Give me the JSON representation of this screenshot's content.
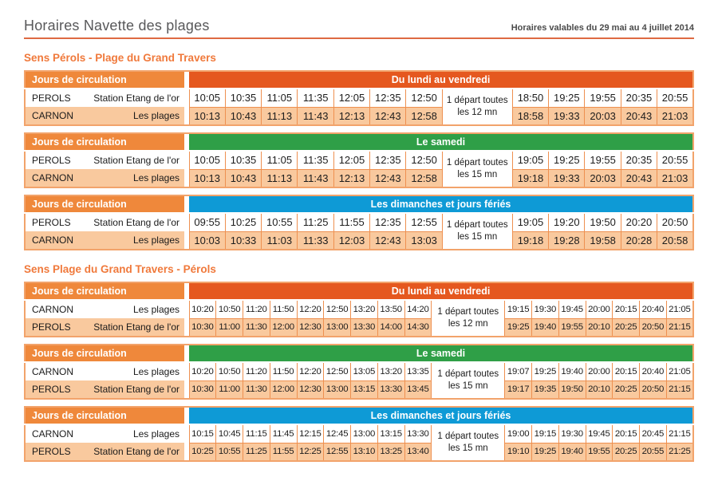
{
  "header": {
    "title": "Horaires Navette des plages",
    "validity": "Horaires valables du 29 mai au 4 juillet 2014"
  },
  "labels": {
    "jours": "Jours de circulation"
  },
  "colors": {
    "orange": "#EF883B",
    "weekday": "#E5581F",
    "saturday": "#2F9F47",
    "sunday": "#0E9AD6",
    "peach": "#F9C99E",
    "cell_border": "#EE9050",
    "table_border": "#F2A36B",
    "rule": "#DE6A42",
    "heading_orange": "#F0793B",
    "title_gray": "#58585A"
  },
  "sections": [
    {
      "heading": "Sens Pérols - Plage du Grand Travers",
      "tables": [
        {
          "key": "weekday",
          "day_label": "Du lundi au vendredi",
          "day_color_key": "weekday",
          "note": [
            "1 départ toutes",
            "les 12 mn"
          ],
          "split": 7,
          "rows": [
            {
              "city": "PEROLS",
              "stop": "Station Etang de l'or",
              "times": [
                "10:05",
                "10:35",
                "11:05",
                "11:35",
                "12:05",
                "12:35",
                "12:50",
                "18:50",
                "19:25",
                "19:55",
                "20:35",
                "20:55"
              ]
            },
            {
              "city": "CARNON",
              "stop": "Les plages",
              "times": [
                "10:13",
                "10:43",
                "11:13",
                "11:43",
                "12:13",
                "12:43",
                "12:58",
                "18:58",
                "19:33",
                "20:03",
                "20:43",
                "21:03"
              ]
            }
          ]
        },
        {
          "key": "saturday",
          "day_label": "Le samedi",
          "day_color_key": "saturday",
          "note": [
            "1 départ toutes",
            "les 15 mn"
          ],
          "split": 7,
          "rows": [
            {
              "city": "PEROLS",
              "stop": "Station Etang de l'or",
              "times": [
                "10:05",
                "10:35",
                "11:05",
                "11:35",
                "12:05",
                "12:35",
                "12:50",
                "19:05",
                "19:25",
                "19:55",
                "20:35",
                "20:55"
              ]
            },
            {
              "city": "CARNON",
              "stop": "Les plages",
              "times": [
                "10:13",
                "10:43",
                "11:13",
                "11:43",
                "12:13",
                "12:43",
                "12:58",
                "19:18",
                "19:33",
                "20:03",
                "20:43",
                "21:03"
              ]
            }
          ]
        },
        {
          "key": "sunday",
          "day_label": "Les dimanches et jours fériés",
          "day_color_key": "sunday",
          "note": [
            "1 départ toutes",
            "les 15 mn"
          ],
          "split": 7,
          "rows": [
            {
              "city": "PEROLS",
              "stop": "Station Etang de l'or",
              "times": [
                "09:55",
                "10:25",
                "10:55",
                "11:25",
                "11:55",
                "12:35",
                "12:55",
                "19:05",
                "19:20",
                "19:50",
                "20:20",
                "20:50"
              ]
            },
            {
              "city": "CARNON",
              "stop": "Les plages",
              "times": [
                "10:03",
                "10:33",
                "11:03",
                "11:33",
                "12:03",
                "12:43",
                "13:03",
                "19:18",
                "19:28",
                "19:58",
                "20:28",
                "20:58"
              ]
            }
          ]
        }
      ]
    },
    {
      "heading": "Sens Plage du Grand Travers - Pérols",
      "tables": [
        {
          "key": "weekday",
          "day_label": "Du lundi au vendredi",
          "day_color_key": "weekday",
          "note": [
            "1 départ toutes",
            "les 12 mn"
          ],
          "split": 9,
          "rows": [
            {
              "city": "CARNON",
              "stop": "Les plages",
              "times": [
                "10:20",
                "10:50",
                "11:20",
                "11:50",
                "12:20",
                "12:50",
                "13:20",
                "13:50",
                "14:20",
                "19:15",
                "19:30",
                "19:45",
                "20:00",
                "20:15",
                "20:40",
                "21:05"
              ]
            },
            {
              "city": "PEROLS",
              "stop": "Station Etang de l'or",
              "times": [
                "10:30",
                "11:00",
                "11:30",
                "12:00",
                "12:30",
                "13:00",
                "13:30",
                "14:00",
                "14:30",
                "19:25",
                "19:40",
                "19:55",
                "20:10",
                "20:25",
                "20:50",
                "21:15"
              ]
            }
          ]
        },
        {
          "key": "saturday",
          "day_label": "Le samedi",
          "day_color_key": "saturday",
          "note": [
            "1 départ toutes",
            "les 15 mn"
          ],
          "split": 9,
          "rows": [
            {
              "city": "CARNON",
              "stop": "Les plages",
              "times": [
                "10:20",
                "10:50",
                "11:20",
                "11:50",
                "12:20",
                "12:50",
                "13:05",
                "13:20",
                "13:35",
                "19:07",
                "19:25",
                "19:40",
                "20:00",
                "20:15",
                "20:40",
                "21:05"
              ]
            },
            {
              "city": "PEROLS",
              "stop": "Station Etang de l'or",
              "times": [
                "10:30",
                "11:00",
                "11:30",
                "12:00",
                "12:30",
                "13:00",
                "13:15",
                "13:30",
                "13:45",
                "19:17",
                "19:35",
                "19:50",
                "20:10",
                "20:25",
                "20:50",
                "21:15"
              ]
            }
          ]
        },
        {
          "key": "sunday",
          "day_label": "Les dimanches et jours fériés",
          "day_color_key": "sunday",
          "note": [
            "1 départ toutes",
            "les 15 mn"
          ],
          "split": 9,
          "rows": [
            {
              "city": "CARNON",
              "stop": "Les plages",
              "times": [
                "10:15",
                "10:45",
                "11:15",
                "11:45",
                "12:15",
                "12:45",
                "13:00",
                "13:15",
                "13:30",
                "19:00",
                "19:15",
                "19:30",
                "19:45",
                "20:15",
                "20:45",
                "21:15"
              ]
            },
            {
              "city": "PEROLS",
              "stop": "Station Etang de l'or",
              "times": [
                "10:25",
                "10:55",
                "11:25",
                "11:55",
                "12:25",
                "12:55",
                "13:10",
                "13:25",
                "13:40",
                "19:10",
                "19:25",
                "19:40",
                "19:55",
                "20:25",
                "20:55",
                "21:25"
              ]
            }
          ]
        }
      ]
    }
  ]
}
